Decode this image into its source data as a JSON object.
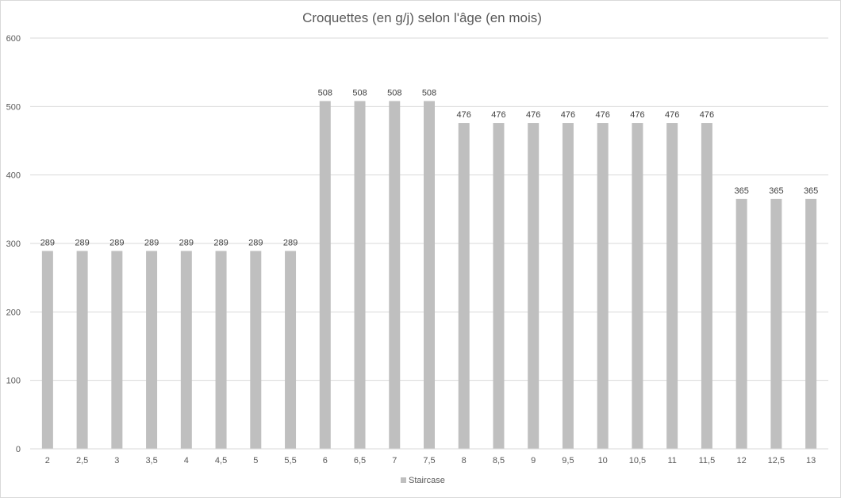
{
  "chart_data": {
    "type": "bar",
    "title": "Croquettes (en g/j) selon l'âge (en mois)",
    "xlabel": "",
    "ylabel": "",
    "categories": [
      "2",
      "2,5",
      "3",
      "3,5",
      "4",
      "4,5",
      "5",
      "5,5",
      "6",
      "6,5",
      "7",
      "7,5",
      "8",
      "8,5",
      "9",
      "9,5",
      "10",
      "10,5",
      "11",
      "11,5",
      "12",
      "12,5",
      "13"
    ],
    "series": [
      {
        "name": "Staircase",
        "color": "#bfbfbf",
        "values": [
          289,
          289,
          289,
          289,
          289,
          289,
          289,
          289,
          508,
          508,
          508,
          508,
          476,
          476,
          476,
          476,
          476,
          476,
          476,
          476,
          365,
          365,
          365
        ]
      }
    ],
    "ylim": [
      0,
      600
    ],
    "yticks": [
      0,
      100,
      200,
      300,
      400,
      500,
      600
    ],
    "grid": true,
    "gridline_color": "#d9d9d9",
    "legend_position": "bottom",
    "data_labels": true
  }
}
